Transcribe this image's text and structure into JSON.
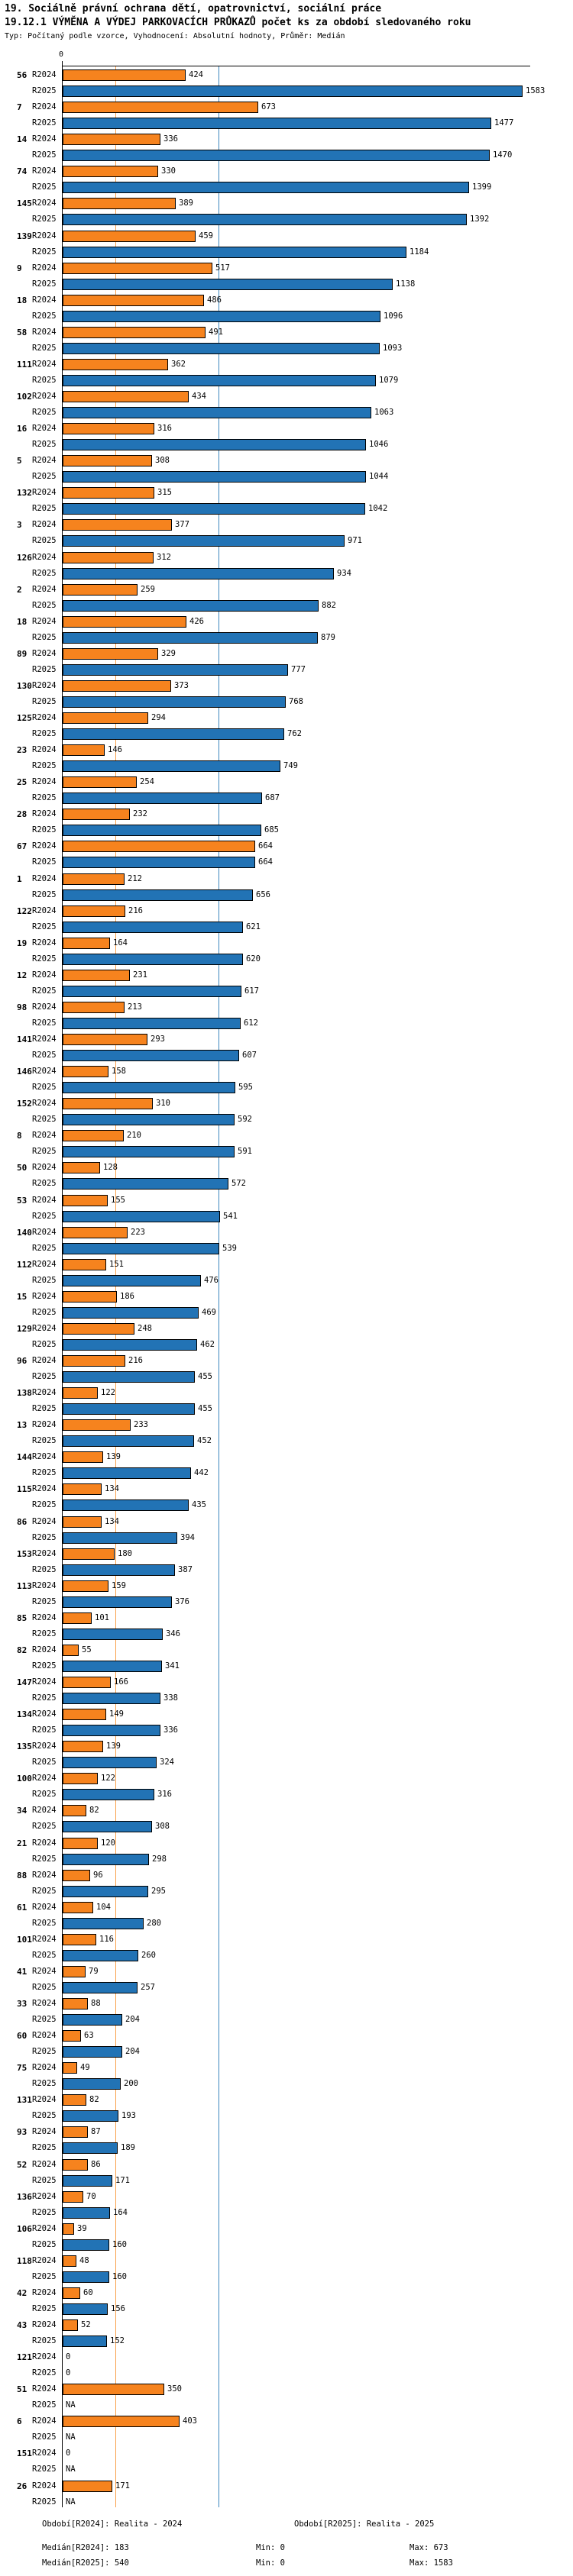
{
  "header": {
    "title_line1": "19. Sociálně právní ochrana dětí, opatrovnictví, sociální práce",
    "title_line2": "19.12.1 VÝMĚNA A VÝDEJ PARKOVACÍCH PRŮKAZŮ počet ks za období sledovaného roku",
    "subtitle": "Typ: Počítaný podle vzorce, Vyhodnocení: Absolutní hodnoty, Průměr: Medián"
  },
  "axis": {
    "zero_label": "0"
  },
  "colors": {
    "bar_2024": "#f6831e",
    "bar_2025": "#2273b5",
    "median_2024_line": "#f9a04b",
    "median_2025_line": "#3d87be"
  },
  "chart_data": {
    "type": "bar",
    "orientation": "horizontal",
    "xlim": [
      0,
      1600
    ],
    "grid": "median-reference-lines-only",
    "legend_position": "bottom",
    "series_names": [
      "R2024",
      "R2025"
    ],
    "medians": {
      "R2024": 183,
      "R2025": 540
    },
    "rows": [
      {
        "id": "56",
        "v2024": 424,
        "v2025": 1583,
        "d2024": "424",
        "d2025": "1583"
      },
      {
        "id": "7",
        "v2024": 673,
        "v2025": 1477,
        "d2024": "673",
        "d2025": "1477"
      },
      {
        "id": "14",
        "v2024": 336,
        "v2025": 1470,
        "d2024": "336",
        "d2025": "1470"
      },
      {
        "id": "74",
        "v2024": 330,
        "v2025": 1399,
        "d2024": "330",
        "d2025": "1399"
      },
      {
        "id": "145",
        "v2024": 389,
        "v2025": 1392,
        "d2024": "389",
        "d2025": "1392"
      },
      {
        "id": "139",
        "v2024": 459,
        "v2025": 1184,
        "d2024": "459",
        "d2025": "1184"
      },
      {
        "id": "9",
        "v2024": 517,
        "v2025": 1138,
        "d2024": "517",
        "d2025": "1138"
      },
      {
        "id": "18",
        "v2024": 486,
        "v2025": 1096,
        "d2024": "486",
        "d2025": "1096"
      },
      {
        "id": "58",
        "v2024": 491,
        "v2025": 1093,
        "d2024": "491",
        "d2025": "1093"
      },
      {
        "id": "111",
        "v2024": 362,
        "v2025": 1079,
        "d2024": "362",
        "d2025": "1079"
      },
      {
        "id": "102",
        "v2024": 434,
        "v2025": 1063,
        "d2024": "434",
        "d2025": "1063"
      },
      {
        "id": "16",
        "v2024": 316,
        "v2025": 1046,
        "d2024": "316",
        "d2025": "1046"
      },
      {
        "id": "5",
        "v2024": 308,
        "v2025": 1044,
        "d2024": "308",
        "d2025": "1044"
      },
      {
        "id": "132",
        "v2024": 315,
        "v2025": 1042,
        "d2024": "315",
        "d2025": "1042"
      },
      {
        "id": "3",
        "v2024": 377,
        "v2025": 971,
        "d2024": "377",
        "d2025": "971"
      },
      {
        "id": "126",
        "v2024": 312,
        "v2025": 934,
        "d2024": "312",
        "d2025": "934"
      },
      {
        "id": "2",
        "v2024": 259,
        "v2025": 882,
        "d2024": "259",
        "d2025": "882"
      },
      {
        "id": "18",
        "v2024": 426,
        "v2025": 879,
        "d2024": "426",
        "d2025": "879"
      },
      {
        "id": "89",
        "v2024": 329,
        "v2025": 777,
        "d2024": "329",
        "d2025": "777"
      },
      {
        "id": "130",
        "v2024": 373,
        "v2025": 768,
        "d2024": "373",
        "d2025": "768"
      },
      {
        "id": "125",
        "v2024": 294,
        "v2025": 762,
        "d2024": "294",
        "d2025": "762"
      },
      {
        "id": "23",
        "v2024": 146,
        "v2025": 749,
        "d2024": "146",
        "d2025": "749"
      },
      {
        "id": "25",
        "v2024": 254,
        "v2025": 687,
        "d2024": "254",
        "d2025": "687"
      },
      {
        "id": "28",
        "v2024": 232,
        "v2025": 685,
        "d2024": "232",
        "d2025": "685"
      },
      {
        "id": "67",
        "v2024": 664,
        "v2025": 664,
        "d2024": "664",
        "d2025": "664"
      },
      {
        "id": "1",
        "v2024": 212,
        "v2025": 656,
        "d2024": "212",
        "d2025": "656"
      },
      {
        "id": "122",
        "v2024": 216,
        "v2025": 621,
        "d2024": "216",
        "d2025": "621"
      },
      {
        "id": "19",
        "v2024": 164,
        "v2025": 620,
        "d2024": "164",
        "d2025": "620"
      },
      {
        "id": "12",
        "v2024": 231,
        "v2025": 617,
        "d2024": "231",
        "d2025": "617"
      },
      {
        "id": "98",
        "v2024": 213,
        "v2025": 612,
        "d2024": "213",
        "d2025": "612"
      },
      {
        "id": "141",
        "v2024": 293,
        "v2025": 607,
        "d2024": "293",
        "d2025": "607"
      },
      {
        "id": "146",
        "v2024": 158,
        "v2025": 595,
        "d2024": "158",
        "d2025": "595"
      },
      {
        "id": "152",
        "v2024": 310,
        "v2025": 592,
        "d2024": "310",
        "d2025": "592"
      },
      {
        "id": "8",
        "v2024": 210,
        "v2025": 591,
        "d2024": "210",
        "d2025": "591"
      },
      {
        "id": "50",
        "v2024": 128,
        "v2025": 572,
        "d2024": "128",
        "d2025": "572"
      },
      {
        "id": "53",
        "v2024": 155,
        "v2025": 541,
        "d2024": "155",
        "d2025": "541"
      },
      {
        "id": "140",
        "v2024": 223,
        "v2025": 539,
        "d2024": "223",
        "d2025": "539"
      },
      {
        "id": "112",
        "v2024": 151,
        "v2025": 476,
        "d2024": "151",
        "d2025": "476"
      },
      {
        "id": "15",
        "v2024": 186,
        "v2025": 469,
        "d2024": "186",
        "d2025": "469"
      },
      {
        "id": "129",
        "v2024": 248,
        "v2025": 462,
        "d2024": "248",
        "d2025": "462"
      },
      {
        "id": "96",
        "v2024": 216,
        "v2025": 455,
        "d2024": "216",
        "d2025": "455"
      },
      {
        "id": "138",
        "v2024": 122,
        "v2025": 455,
        "d2024": "122",
        "d2025": "455"
      },
      {
        "id": "13",
        "v2024": 233,
        "v2025": 452,
        "d2024": "233",
        "d2025": "452"
      },
      {
        "id": "144",
        "v2024": 139,
        "v2025": 442,
        "d2024": "139",
        "d2025": "442"
      },
      {
        "id": "115",
        "v2024": 134,
        "v2025": 435,
        "d2024": "134",
        "d2025": "435"
      },
      {
        "id": "86",
        "v2024": 134,
        "v2025": 394,
        "d2024": "134",
        "d2025": "394"
      },
      {
        "id": "153",
        "v2024": 180,
        "v2025": 387,
        "d2024": "180",
        "d2025": "387"
      },
      {
        "id": "113",
        "v2024": 159,
        "v2025": 376,
        "d2024": "159",
        "d2025": "376"
      },
      {
        "id": "85",
        "v2024": 101,
        "v2025": 346,
        "d2024": "101",
        "d2025": "346"
      },
      {
        "id": "82",
        "v2024": 55,
        "v2025": 341,
        "d2024": "55",
        "d2025": "341"
      },
      {
        "id": "147",
        "v2024": 166,
        "v2025": 338,
        "d2024": "166",
        "d2025": "338"
      },
      {
        "id": "134",
        "v2024": 149,
        "v2025": 336,
        "d2024": "149",
        "d2025": "336"
      },
      {
        "id": "135",
        "v2024": 139,
        "v2025": 324,
        "d2024": "139",
        "d2025": "324"
      },
      {
        "id": "100",
        "v2024": 122,
        "v2025": 316,
        "d2024": "122",
        "d2025": "316"
      },
      {
        "id": "34",
        "v2024": 82,
        "v2025": 308,
        "d2024": "82",
        "d2025": "308"
      },
      {
        "id": "21",
        "v2024": 120,
        "v2025": 298,
        "d2024": "120",
        "d2025": "298"
      },
      {
        "id": "88",
        "v2024": 96,
        "v2025": 295,
        "d2024": "96",
        "d2025": "295"
      },
      {
        "id": "61",
        "v2024": 104,
        "v2025": 280,
        "d2024": "104",
        "d2025": "280"
      },
      {
        "id": "101",
        "v2024": 116,
        "v2025": 260,
        "d2024": "116",
        "d2025": "260"
      },
      {
        "id": "41",
        "v2024": 79,
        "v2025": 257,
        "d2024": "79",
        "d2025": "257"
      },
      {
        "id": "33",
        "v2024": 88,
        "v2025": 204,
        "d2024": "88",
        "d2025": "204"
      },
      {
        "id": "60",
        "v2024": 63,
        "v2025": 204,
        "d2024": "63",
        "d2025": "204"
      },
      {
        "id": "75",
        "v2024": 49,
        "v2025": 200,
        "d2024": "49",
        "d2025": "200"
      },
      {
        "id": "131",
        "v2024": 82,
        "v2025": 193,
        "d2024": "82",
        "d2025": "193"
      },
      {
        "id": "93",
        "v2024": 87,
        "v2025": 189,
        "d2024": "87",
        "d2025": "189"
      },
      {
        "id": "52",
        "v2024": 86,
        "v2025": 171,
        "d2024": "86",
        "d2025": "171"
      },
      {
        "id": "136",
        "v2024": 70,
        "v2025": 164,
        "d2024": "70",
        "d2025": "164"
      },
      {
        "id": "106",
        "v2024": 39,
        "v2025": 160,
        "d2024": "39",
        "d2025": "160"
      },
      {
        "id": "118",
        "v2024": 48,
        "v2025": 160,
        "d2024": "48",
        "d2025": "160"
      },
      {
        "id": "42",
        "v2024": 60,
        "v2025": 156,
        "d2024": "60",
        "d2025": "156"
      },
      {
        "id": "43",
        "v2024": 52,
        "v2025": 152,
        "d2024": "52",
        "d2025": "152"
      },
      {
        "id": "121",
        "v2024": 0,
        "v2025": 0,
        "d2024": "0",
        "d2025": "0"
      },
      {
        "id": "51",
        "v2024": 350,
        "v2025": null,
        "d2024": "350",
        "d2025": "NA"
      },
      {
        "id": "6",
        "v2024": 403,
        "v2025": null,
        "d2024": "403",
        "d2025": "NA"
      },
      {
        "id": "151",
        "v2024": 0,
        "v2025": null,
        "d2024": "0",
        "d2025": "NA"
      },
      {
        "id": "26",
        "v2024": 171,
        "v2025": null,
        "d2024": "171",
        "d2025": "NA"
      }
    ]
  },
  "footer": {
    "legend_2024": "Období[R2024]: Realita - 2024",
    "legend_2025": "Období[R2025]: Realita - 2025",
    "median_2024": "Medián[R2024]: 183",
    "min_2024": "Min: 0",
    "max_2024": "Max: 673",
    "median_2025": "Medián[R2025]: 540",
    "min_2025": "Min: 0",
    "max_2025": "Max: 1583"
  }
}
